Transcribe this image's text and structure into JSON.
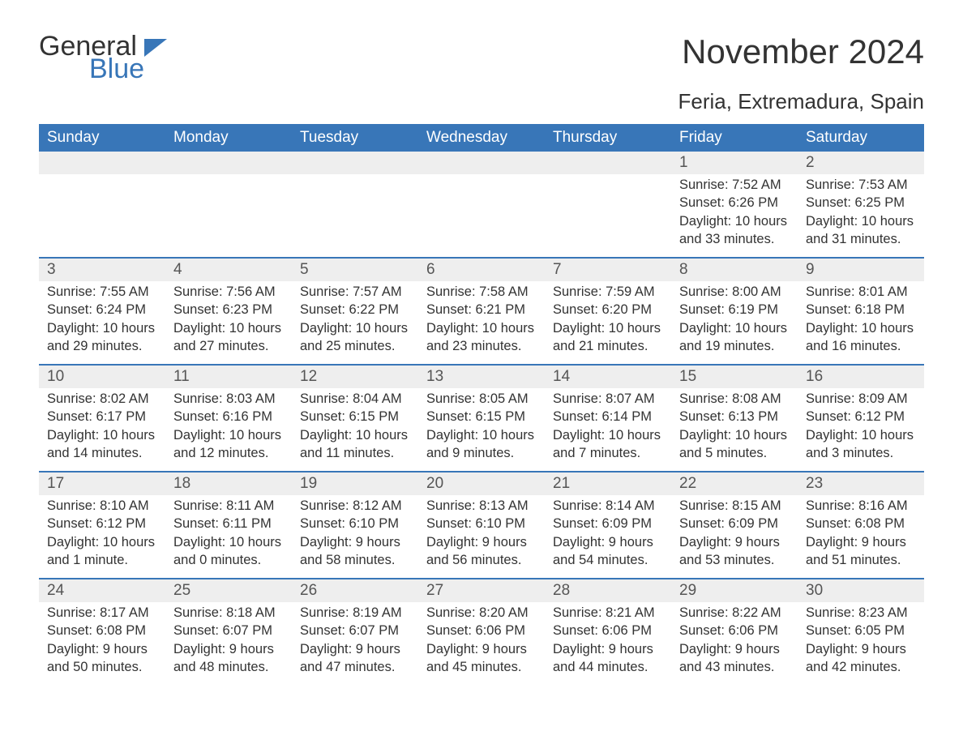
{
  "logo": {
    "part1": "General",
    "part2": "Blue"
  },
  "title": "November 2024",
  "subtitle": "Feria, Extremadura, Spain",
  "colors": {
    "header_bg": "#3876b8",
    "header_text": "#ffffff",
    "date_bg": "#eeeeee",
    "border": "#3876b8",
    "text_dark": "#333333",
    "text_muted": "#555555"
  },
  "day_headers": [
    "Sunday",
    "Monday",
    "Tuesday",
    "Wednesday",
    "Thursday",
    "Friday",
    "Saturday"
  ],
  "weeks": [
    {
      "dates": [
        "",
        "",
        "",
        "",
        "",
        "1",
        "2"
      ],
      "data": [
        {},
        {},
        {},
        {},
        {},
        {
          "sunrise": "Sunrise: 7:52 AM",
          "sunset": "Sunset: 6:26 PM",
          "daylight": "Daylight: 10 hours and 33 minutes."
        },
        {
          "sunrise": "Sunrise: 7:53 AM",
          "sunset": "Sunset: 6:25 PM",
          "daylight": "Daylight: 10 hours and 31 minutes."
        }
      ]
    },
    {
      "dates": [
        "3",
        "4",
        "5",
        "6",
        "7",
        "8",
        "9"
      ],
      "data": [
        {
          "sunrise": "Sunrise: 7:55 AM",
          "sunset": "Sunset: 6:24 PM",
          "daylight": "Daylight: 10 hours and 29 minutes."
        },
        {
          "sunrise": "Sunrise: 7:56 AM",
          "sunset": "Sunset: 6:23 PM",
          "daylight": "Daylight: 10 hours and 27 minutes."
        },
        {
          "sunrise": "Sunrise: 7:57 AM",
          "sunset": "Sunset: 6:22 PM",
          "daylight": "Daylight: 10 hours and 25 minutes."
        },
        {
          "sunrise": "Sunrise: 7:58 AM",
          "sunset": "Sunset: 6:21 PM",
          "daylight": "Daylight: 10 hours and 23 minutes."
        },
        {
          "sunrise": "Sunrise: 7:59 AM",
          "sunset": "Sunset: 6:20 PM",
          "daylight": "Daylight: 10 hours and 21 minutes."
        },
        {
          "sunrise": "Sunrise: 8:00 AM",
          "sunset": "Sunset: 6:19 PM",
          "daylight": "Daylight: 10 hours and 19 minutes."
        },
        {
          "sunrise": "Sunrise: 8:01 AM",
          "sunset": "Sunset: 6:18 PM",
          "daylight": "Daylight: 10 hours and 16 minutes."
        }
      ]
    },
    {
      "dates": [
        "10",
        "11",
        "12",
        "13",
        "14",
        "15",
        "16"
      ],
      "data": [
        {
          "sunrise": "Sunrise: 8:02 AM",
          "sunset": "Sunset: 6:17 PM",
          "daylight": "Daylight: 10 hours and 14 minutes."
        },
        {
          "sunrise": "Sunrise: 8:03 AM",
          "sunset": "Sunset: 6:16 PM",
          "daylight": "Daylight: 10 hours and 12 minutes."
        },
        {
          "sunrise": "Sunrise: 8:04 AM",
          "sunset": "Sunset: 6:15 PM",
          "daylight": "Daylight: 10 hours and 11 minutes."
        },
        {
          "sunrise": "Sunrise: 8:05 AM",
          "sunset": "Sunset: 6:15 PM",
          "daylight": "Daylight: 10 hours and 9 minutes."
        },
        {
          "sunrise": "Sunrise: 8:07 AM",
          "sunset": "Sunset: 6:14 PM",
          "daylight": "Daylight: 10 hours and 7 minutes."
        },
        {
          "sunrise": "Sunrise: 8:08 AM",
          "sunset": "Sunset: 6:13 PM",
          "daylight": "Daylight: 10 hours and 5 minutes."
        },
        {
          "sunrise": "Sunrise: 8:09 AM",
          "sunset": "Sunset: 6:12 PM",
          "daylight": "Daylight: 10 hours and 3 minutes."
        }
      ]
    },
    {
      "dates": [
        "17",
        "18",
        "19",
        "20",
        "21",
        "22",
        "23"
      ],
      "data": [
        {
          "sunrise": "Sunrise: 8:10 AM",
          "sunset": "Sunset: 6:12 PM",
          "daylight": "Daylight: 10 hours and 1 minute."
        },
        {
          "sunrise": "Sunrise: 8:11 AM",
          "sunset": "Sunset: 6:11 PM",
          "daylight": "Daylight: 10 hours and 0 minutes."
        },
        {
          "sunrise": "Sunrise: 8:12 AM",
          "sunset": "Sunset: 6:10 PM",
          "daylight": "Daylight: 9 hours and 58 minutes."
        },
        {
          "sunrise": "Sunrise: 8:13 AM",
          "sunset": "Sunset: 6:10 PM",
          "daylight": "Daylight: 9 hours and 56 minutes."
        },
        {
          "sunrise": "Sunrise: 8:14 AM",
          "sunset": "Sunset: 6:09 PM",
          "daylight": "Daylight: 9 hours and 54 minutes."
        },
        {
          "sunrise": "Sunrise: 8:15 AM",
          "sunset": "Sunset: 6:09 PM",
          "daylight": "Daylight: 9 hours and 53 minutes."
        },
        {
          "sunrise": "Sunrise: 8:16 AM",
          "sunset": "Sunset: 6:08 PM",
          "daylight": "Daylight: 9 hours and 51 minutes."
        }
      ]
    },
    {
      "dates": [
        "24",
        "25",
        "26",
        "27",
        "28",
        "29",
        "30"
      ],
      "data": [
        {
          "sunrise": "Sunrise: 8:17 AM",
          "sunset": "Sunset: 6:08 PM",
          "daylight": "Daylight: 9 hours and 50 minutes."
        },
        {
          "sunrise": "Sunrise: 8:18 AM",
          "sunset": "Sunset: 6:07 PM",
          "daylight": "Daylight: 9 hours and 48 minutes."
        },
        {
          "sunrise": "Sunrise: 8:19 AM",
          "sunset": "Sunset: 6:07 PM",
          "daylight": "Daylight: 9 hours and 47 minutes."
        },
        {
          "sunrise": "Sunrise: 8:20 AM",
          "sunset": "Sunset: 6:06 PM",
          "daylight": "Daylight: 9 hours and 45 minutes."
        },
        {
          "sunrise": "Sunrise: 8:21 AM",
          "sunset": "Sunset: 6:06 PM",
          "daylight": "Daylight: 9 hours and 44 minutes."
        },
        {
          "sunrise": "Sunrise: 8:22 AM",
          "sunset": "Sunset: 6:06 PM",
          "daylight": "Daylight: 9 hours and 43 minutes."
        },
        {
          "sunrise": "Sunrise: 8:23 AM",
          "sunset": "Sunset: 6:05 PM",
          "daylight": "Daylight: 9 hours and 42 minutes."
        }
      ]
    }
  ]
}
